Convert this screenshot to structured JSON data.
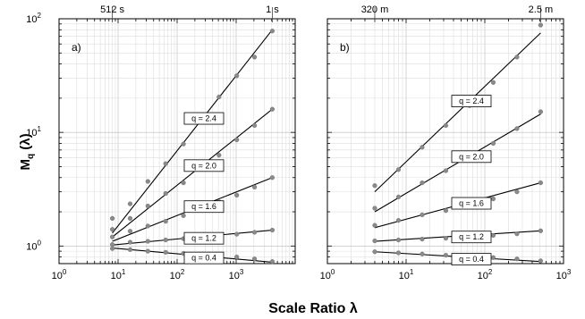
{
  "chart_data": {
    "type": "scatter",
    "ylabel": {
      "main": "M",
      "sub": "q",
      "rest": " (λ)"
    },
    "xlabel": "Scale Ratio λ",
    "x_scale": "log",
    "y_scale": "log",
    "ylim": [
      0.7,
      100
    ],
    "y_ticks": [
      {
        "value": 1,
        "base": "10",
        "exp": "0"
      },
      {
        "value": 10,
        "base": "10",
        "exp": "1"
      },
      {
        "value": 100,
        "base": "10",
        "exp": "2"
      }
    ],
    "panels": [
      {
        "label": "a)",
        "xlim": [
          1,
          10000
        ],
        "x_ticks": [
          {
            "value": 1,
            "base": "10",
            "exp": "0"
          },
          {
            "value": 10,
            "base": "10",
            "exp": "1"
          },
          {
            "value": 100,
            "base": "10",
            "exp": "2"
          },
          {
            "value": 1000,
            "base": "10",
            "exp": "3"
          }
        ],
        "top_labels": [
          {
            "text": "512 s",
            "x": 8
          },
          {
            "text": "1 s",
            "x": 4096
          }
        ],
        "series": [
          {
            "q_label": "q = 2.4",
            "x": [
              8,
              16,
              32,
              64,
              128,
              256,
              512,
              1024,
              2048,
              4096
            ],
            "y": [
              1.75,
              2.35,
              3.7,
              5.3,
              7.9,
              12.5,
              20.5,
              31.5,
              46,
              78
            ],
            "fit": {
              "x": [
                8,
                4096
              ],
              "y": [
                1.3,
                80
              ]
            }
          },
          {
            "q_label": "q = 2.0",
            "x": [
              8,
              16,
              32,
              64,
              128,
              256,
              512,
              1024,
              2048,
              4096
            ],
            "y": [
              1.4,
              1.75,
              2.25,
              2.9,
              3.6,
              4.8,
              6.3,
              8.6,
              11.5,
              16
            ],
            "fit": {
              "x": [
                8,
                4096
              ],
              "y": [
                1.2,
                16
              ]
            }
          },
          {
            "q_label": "q = 1.6",
            "x": [
              8,
              16,
              32,
              64,
              128,
              256,
              512,
              1024,
              2048,
              4096
            ],
            "y": [
              1.2,
              1.35,
              1.5,
              1.65,
              1.85,
              2.1,
              2.45,
              2.8,
              3.3,
              4.0
            ],
            "fit": {
              "x": [
                8,
                4096
              ],
              "y": [
                1.1,
                4.0
              ]
            }
          },
          {
            "q_label": "q = 1.2",
            "x": [
              8,
              16,
              32,
              64,
              128,
              256,
              512,
              1024,
              2048,
              4096
            ],
            "y": [
              1.03,
              1.08,
              1.1,
              1.13,
              1.16,
              1.2,
              1.23,
              1.27,
              1.32,
              1.38
            ],
            "fit": {
              "x": [
                8,
                4096
              ],
              "y": [
                1.02,
                1.38
              ]
            }
          },
          {
            "q_label": "q = 0.4",
            "x": [
              8,
              16,
              32,
              64,
              128,
              256,
              512,
              1024,
              2048,
              4096
            ],
            "y": [
              0.95,
              0.93,
              0.9,
              0.88,
              0.86,
              0.84,
              0.82,
              0.8,
              0.77,
              0.73
            ],
            "fit": {
              "x": [
                8,
                4096
              ],
              "y": [
                0.96,
                0.72
              ]
            }
          }
        ]
      },
      {
        "label": "b)",
        "xlim": [
          1,
          1000
        ],
        "x_ticks": [
          {
            "value": 1,
            "base": "10",
            "exp": "0"
          },
          {
            "value": 10,
            "base": "10",
            "exp": "1"
          },
          {
            "value": 100,
            "base": "10",
            "exp": "2"
          },
          {
            "value": 1000,
            "base": "10",
            "exp": "3"
          }
        ],
        "top_labels": [
          {
            "text": "320 m",
            "x": 4
          },
          {
            "text": "2.5 m",
            "x": 512
          }
        ],
        "series": [
          {
            "q_label": "q = 2.4",
            "x": [
              4,
              8,
              16,
              32,
              64,
              128,
              256,
              512
            ],
            "y": [
              3.4,
              4.7,
              7.4,
              11.5,
              17.2,
              27.5,
              46,
              88
            ],
            "fit": {
              "x": [
                4,
                512
              ],
              "y": [
                3.0,
                75
              ]
            }
          },
          {
            "q_label": "q = 2.0",
            "x": [
              4,
              8,
              16,
              32,
              64,
              128,
              256,
              512
            ],
            "y": [
              2.15,
              2.7,
              3.6,
              4.6,
              6.0,
              8.0,
              10.8,
              15.2
            ],
            "fit": {
              "x": [
                4,
                512
              ],
              "y": [
                2.0,
                14.5
              ]
            }
          },
          {
            "q_label": "q = 1.6",
            "x": [
              4,
              8,
              16,
              32,
              64,
              128,
              256,
              512
            ],
            "y": [
              1.52,
              1.68,
              1.88,
              2.05,
              2.3,
              2.6,
              3.0,
              3.6
            ],
            "fit": {
              "x": [
                4,
                512
              ],
              "y": [
                1.45,
                3.6
              ]
            }
          },
          {
            "q_label": "q = 1.2",
            "x": [
              4,
              8,
              16,
              32,
              64,
              128,
              256,
              512
            ],
            "y": [
              1.11,
              1.13,
              1.15,
              1.17,
              1.2,
              1.24,
              1.28,
              1.36
            ],
            "fit": {
              "x": [
                4,
                512
              ],
              "y": [
                1.1,
                1.36
              ]
            }
          },
          {
            "q_label": "q = 0.4",
            "x": [
              4,
              8,
              16,
              32,
              64,
              128,
              256,
              512
            ],
            "y": [
              0.89,
              0.87,
              0.85,
              0.83,
              0.81,
              0.79,
              0.77,
              0.74
            ],
            "fit": {
              "x": [
                4,
                512
              ],
              "y": [
                0.89,
                0.73
              ]
            }
          }
        ]
      }
    ]
  }
}
